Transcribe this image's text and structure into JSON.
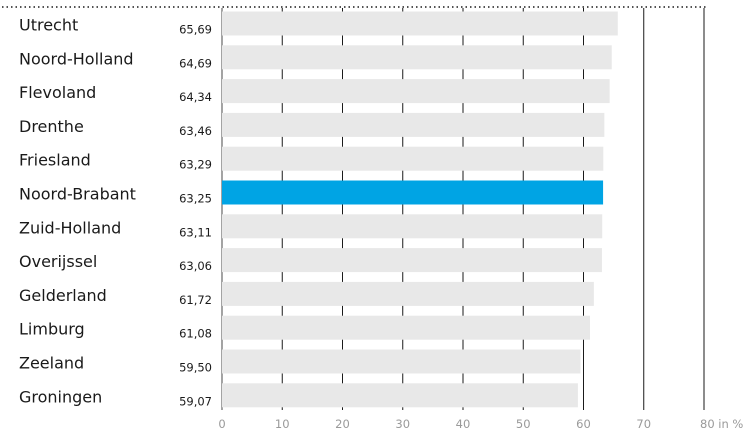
{
  "chart_data": {
    "type": "bar",
    "orientation": "horizontal",
    "categories": [
      "Utrecht",
      "Noord-Holland",
      "Flevoland",
      "Drenthe",
      "Friesland",
      "Noord-Brabant",
      "Zuid-Holland",
      "Overijssel",
      "Gelderland",
      "Limburg",
      "Zeeland",
      "Groningen"
    ],
    "values": [
      65.69,
      64.69,
      64.34,
      63.46,
      63.29,
      63.25,
      63.11,
      63.06,
      61.72,
      61.08,
      59.5,
      59.07
    ],
    "value_labels": [
      "65,69",
      "64,69",
      "64,34",
      "63,46",
      "63,29",
      "63,25",
      "63,11",
      "63,06",
      "61,72",
      "61,08",
      "59,50",
      "59,07"
    ],
    "highlight": "Noord-Brabant",
    "xlim": [
      0,
      80
    ],
    "xticks": [
      "0",
      "10",
      "20",
      "30",
      "40",
      "50",
      "60",
      "70",
      "80 in %"
    ],
    "title": "",
    "xlabel": "",
    "ylabel": "",
    "grid": true,
    "colors": {
      "bar": "#e8e8e8",
      "highlight": "#00a4e4",
      "grid": "#1a1a1a",
      "text": "#1a1a1a",
      "tick": "#9a9a9a"
    }
  }
}
